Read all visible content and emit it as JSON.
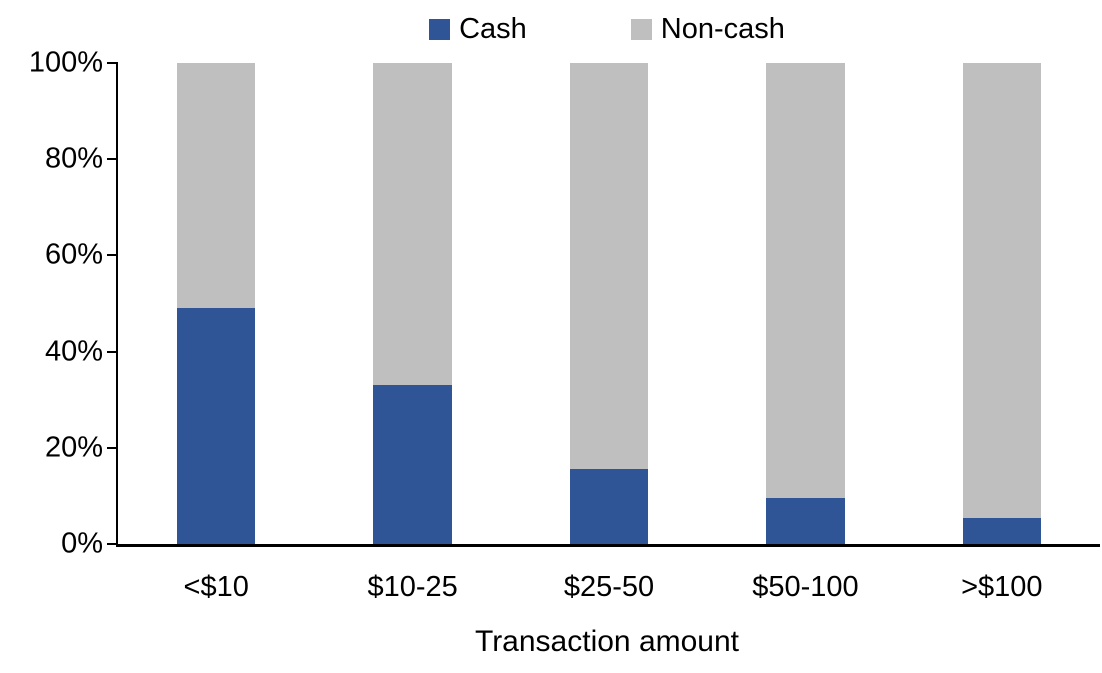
{
  "chart_data": {
    "type": "bar",
    "subtype": "stacked-100-percent",
    "categories": [
      "<$10",
      "$10-25",
      "$25-50",
      "$50-100",
      ">$100"
    ],
    "series": [
      {
        "name": "Cash",
        "color": "#2F5597",
        "values": [
          49,
          33,
          15.5,
          9.5,
          5.5
        ]
      },
      {
        "name": "Non-cash",
        "color": "#BFBFBF",
        "values": [
          51,
          67,
          84.5,
          90.5,
          94.5
        ]
      }
    ],
    "title": "",
    "xlabel": "Transaction amount",
    "ylabel": "",
    "ylim": [
      0,
      100
    ],
    "yticks": [
      {
        "value": 0,
        "label": "0%"
      },
      {
        "value": 20,
        "label": "20%"
      },
      {
        "value": 40,
        "label": "40%"
      },
      {
        "value": 60,
        "label": "60%"
      },
      {
        "value": 80,
        "label": "80%"
      },
      {
        "value": 100,
        "label": "100%"
      }
    ],
    "legend_position": "top",
    "grid": false,
    "background_color": "#FFFFFF",
    "axis_color": "#000000"
  }
}
